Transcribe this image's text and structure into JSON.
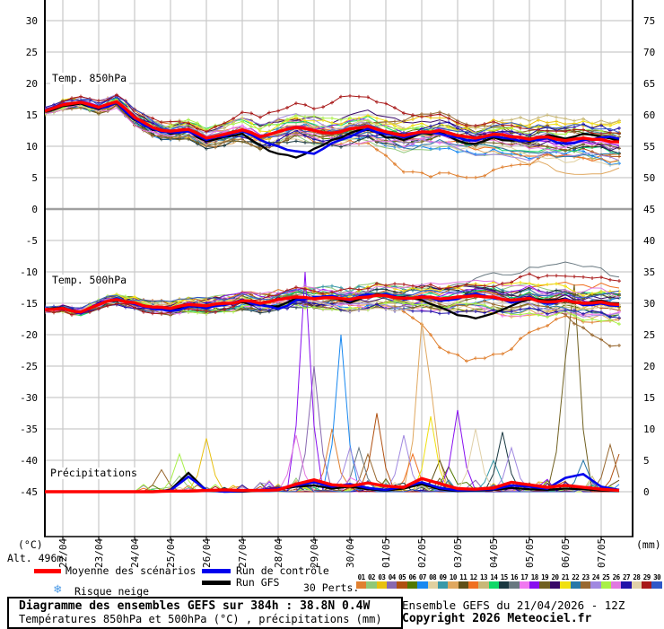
{
  "chart_data": {
    "type": "line",
    "title": "Diagramme des ensembles GEFS sur 384h : 38.8N 0.4W",
    "subtitle": "Températures 850hPa et 500hPa (°C) , précipitations (mm)",
    "run_info": "Ensemble GEFS du 21/04/2026 - 12Z",
    "copyright": "Copyright 2026 Meteociel.fr",
    "alt_label": "Alt. 496m",
    "panel_labels": [
      "Temp. 850hPa",
      "Temp. 500hPa",
      "Précipitations"
    ],
    "x_dates": [
      "22/04",
      "23/04",
      "24/04",
      "25/04",
      "26/04",
      "27/04",
      "28/04",
      "29/04",
      "30/04",
      "01/05",
      "02/05",
      "03/05",
      "04/05",
      "05/05",
      "06/05",
      "07/05"
    ],
    "left_axis": {
      "unit": "(°C)",
      "ticks": [
        30,
        25,
        20,
        15,
        10,
        5,
        0,
        -5,
        -10,
        -15,
        -20,
        -25,
        -30,
        -35,
        -40,
        -45
      ]
    },
    "right_axis": {
      "unit": "(mm)",
      "ticks": [
        75,
        70,
        65,
        60,
        55,
        50,
        45,
        40,
        35,
        30,
        25,
        20,
        15,
        10,
        5,
        0
      ]
    },
    "legend": {
      "mean": "Moyenne des scénarios",
      "control": "Run de contrôle",
      "gfs": "Run GFS",
      "perts": "30 Perts.",
      "snow": "Risque neige"
    },
    "pert_numbers": [
      "01",
      "02",
      "03",
      "04",
      "05",
      "06",
      "07",
      "08",
      "09",
      "10",
      "11",
      "12",
      "13",
      "14",
      "15",
      "16",
      "17",
      "18",
      "19",
      "20",
      "21",
      "22",
      "23",
      "24",
      "25",
      "26",
      "27",
      "28",
      "29",
      "30"
    ],
    "colors": {
      "mean": "#FF0000",
      "control": "#0000EE",
      "gfs": "#000000",
      "grid": "#C9C9C9",
      "zero_line": "#A0A0A0",
      "snow_icon": "#4D9BE6",
      "pert_colors": [
        "#E08030",
        "#90C878",
        "#E8C010",
        "#8868B0",
        "#B05010",
        "#507800",
        "#1888F0",
        "#E0D0A0",
        "#3898A8",
        "#E0A860",
        "#605018",
        "#F07020",
        "#C8B878",
        "#10D868",
        "#183840",
        "#687880",
        "#F078F0",
        "#8810F0",
        "#706020",
        "#380868",
        "#F0E010",
        "#2878A8",
        "#986830",
        "#A088E0",
        "#A8F048",
        "#E078E0",
        "#2010A8",
        "#E0D0A8",
        "#A81818",
        "#3058C8"
      ]
    },
    "series_12h": {
      "time_step_hours": 12,
      "start": "21/04 12Z",
      "mean_850": [
        15.6,
        16.6,
        17.0,
        16.2,
        17.1,
        14.6,
        13.0,
        12.4,
        12.7,
        11.3,
        11.9,
        12.6,
        11.5,
        12.3,
        13.0,
        12.5,
        12.1,
        12.8,
        13.2,
        12.3,
        11.7,
        12.3,
        12.5,
        11.7,
        11.3,
        11.9,
        11.5,
        11.1,
        11.5,
        10.9,
        11.3,
        11.1,
        10.7
      ],
      "control_850": [
        15.7,
        16.7,
        17.1,
        16.1,
        17.0,
        14.4,
        12.8,
        12.2,
        12.4,
        11.0,
        11.6,
        12.4,
        11.0,
        10.0,
        9.2,
        8.8,
        10.5,
        11.5,
        12.8,
        12.0,
        11.4,
        12.2,
        12.0,
        11.4,
        10.9,
        11.6,
        11.2,
        10.9,
        11.3,
        10.4,
        11.0,
        11.4,
        11.2
      ],
      "gfs_850": [
        15.5,
        16.4,
        16.8,
        15.9,
        16.9,
        14.2,
        12.6,
        12.0,
        12.5,
        10.8,
        11.5,
        12.0,
        10.2,
        8.8,
        8.2,
        9.6,
        11.0,
        12.1,
        12.6,
        11.4,
        11.0,
        12.1,
        12.3,
        10.9,
        10.4,
        11.4,
        10.9,
        10.7,
        11.8,
        11.2,
        12.0,
        11.5,
        10.9
      ],
      "mean_500": [
        -16.0,
        -15.8,
        -16.4,
        -15.2,
        -14.4,
        -14.9,
        -15.6,
        -15.8,
        -15.2,
        -15.4,
        -15.0,
        -14.6,
        -15.0,
        -14.4,
        -14.0,
        -14.3,
        -14.1,
        -14.4,
        -14.0,
        -13.8,
        -14.2,
        -14.0,
        -14.3,
        -14.0,
        -13.8,
        -14.0,
        -14.5,
        -14.2,
        -14.8,
        -14.5,
        -15.0,
        -14.8,
        -15.2
      ],
      "control_500": [
        -16.1,
        -15.9,
        -16.6,
        -15.0,
        -14.2,
        -15.1,
        -15.9,
        -16.2,
        -15.5,
        -15.8,
        -15.3,
        -14.4,
        -15.3,
        -15.9,
        -14.5,
        -14.0,
        -13.8,
        -14.6,
        -13.6,
        -13.5,
        -14.4,
        -13.8,
        -14.6,
        -14.3,
        -13.5,
        -14.2,
        -14.9,
        -14.0,
        -15.1,
        -14.3,
        -15.3,
        -15.0,
        -15.4
      ],
      "gfs_500": [
        -16.0,
        -15.7,
        -16.5,
        -15.1,
        -14.3,
        -15.0,
        -15.7,
        -16.0,
        -15.3,
        -15.6,
        -15.1,
        -14.8,
        -15.2,
        -15.5,
        -14.2,
        -14.2,
        -14.0,
        -14.9,
        -13.8,
        -13.6,
        -14.1,
        -14.5,
        -15.6,
        -16.9,
        -17.4,
        -16.6,
        -15.4,
        -14.4,
        -14.6,
        -14.2,
        -15.1,
        -14.6,
        -15.0
      ],
      "mean_precip": [
        0,
        0,
        0,
        0,
        0,
        0,
        0,
        0.1,
        0.1,
        0.2,
        0.3,
        0.2,
        0.2,
        0.3,
        1.2,
        1.9,
        1.1,
        0.9,
        1.4,
        0.9,
        0.7,
        2.1,
        1.3,
        0.5,
        0.4,
        0.6,
        1.5,
        1.1,
        0.7,
        1.0,
        0.7,
        0.4,
        0.2
      ],
      "control_precip": [
        0,
        0,
        0,
        0,
        0,
        0,
        0,
        0.2,
        2.4,
        0.3,
        0,
        0.1,
        0.3,
        0.5,
        1.0,
        1.5,
        0.8,
        1.2,
        0.6,
        0.3,
        0.8,
        1.5,
        0.6,
        0.2,
        0.3,
        0.4,
        1.0,
        0.8,
        0.5,
        2.2,
        2.8,
        0.8,
        0.3
      ],
      "gfs_precip": [
        0,
        0,
        0,
        0,
        0,
        0,
        0,
        0.3,
        3.0,
        0.2,
        0,
        0,
        0.2,
        0.4,
        0.8,
        1.0,
        0.5,
        0.8,
        0.4,
        0.2,
        0.5,
        1.2,
        0.4,
        0.1,
        0.2,
        0.3,
        0.6,
        0.4,
        0.3,
        0.5,
        0.4,
        0.2,
        0.1
      ]
    },
    "precip_spikes": [
      {
        "p": 23,
        "i": 13,
        "mm": 3.5
      },
      {
        "p": 25,
        "i": 15,
        "mm": 6
      },
      {
        "p": 2,
        "i": 15,
        "mm": 2.5
      },
      {
        "p": 3,
        "i": 18,
        "mm": 8.5
      },
      {
        "p": 18,
        "i": 29,
        "mm": 35
      },
      {
        "p": 4,
        "i": 30,
        "mm": 20
      },
      {
        "p": 26,
        "i": 28,
        "mm": 9
      },
      {
        "p": 7,
        "i": 33,
        "mm": 25
      },
      {
        "p": 1,
        "i": 32,
        "mm": 10
      },
      {
        "p": 24,
        "i": 34,
        "mm": 7
      },
      {
        "p": 16,
        "i": 35,
        "mm": 7
      },
      {
        "p": 5,
        "i": 37,
        "mm": 12.5
      },
      {
        "p": 23,
        "i": 36,
        "mm": 6
      },
      {
        "p": 10,
        "i": 42,
        "mm": 27
      },
      {
        "p": 10,
        "i": 43,
        "mm": 17
      },
      {
        "p": 21,
        "i": 43,
        "mm": 12
      },
      {
        "p": 24,
        "i": 40,
        "mm": 9
      },
      {
        "p": 12,
        "i": 41,
        "mm": 6
      },
      {
        "p": 11,
        "i": 44,
        "mm": 5
      },
      {
        "p": 6,
        "i": 45,
        "mm": 4
      },
      {
        "p": 18,
        "i": 46,
        "mm": 13
      },
      {
        "p": 28,
        "i": 48,
        "mm": 10
      },
      {
        "p": 9,
        "i": 50,
        "mm": 5
      },
      {
        "p": 15,
        "i": 51,
        "mm": 9.5
      },
      {
        "p": 24,
        "i": 52,
        "mm": 7
      },
      {
        "p": 19,
        "i": 58,
        "mm": 21
      },
      {
        "p": 19,
        "i": 59,
        "mm": 33
      },
      {
        "p": 22,
        "i": 60,
        "mm": 5
      },
      {
        "p": 23,
        "i": 63,
        "mm": 7.5
      },
      {
        "p": 5,
        "i": 64,
        "mm": 6
      }
    ],
    "outliers": [
      {
        "p": 29,
        "panel": 850,
        "amp": 4.3,
        "center": 38,
        "width": 13
      },
      {
        "p": 1,
        "panel": 850,
        "amp": -5.2,
        "center": 44,
        "width": 7
      },
      {
        "p": 10,
        "panel": 850,
        "amp": -3.5,
        "center": 58,
        "width": 8
      },
      {
        "p": 29,
        "panel": 500,
        "amp": 4.0,
        "center": 57,
        "width": 9
      },
      {
        "p": 16,
        "panel": 500,
        "amp": 3.2,
        "center": 58,
        "width": 9
      },
      {
        "p": 1,
        "panel": 500,
        "amp": -8.5,
        "center": 48,
        "width": 6
      },
      {
        "p": 23,
        "panel": 500,
        "amp": -5.0,
        "center": 63,
        "width": 4
      }
    ]
  }
}
